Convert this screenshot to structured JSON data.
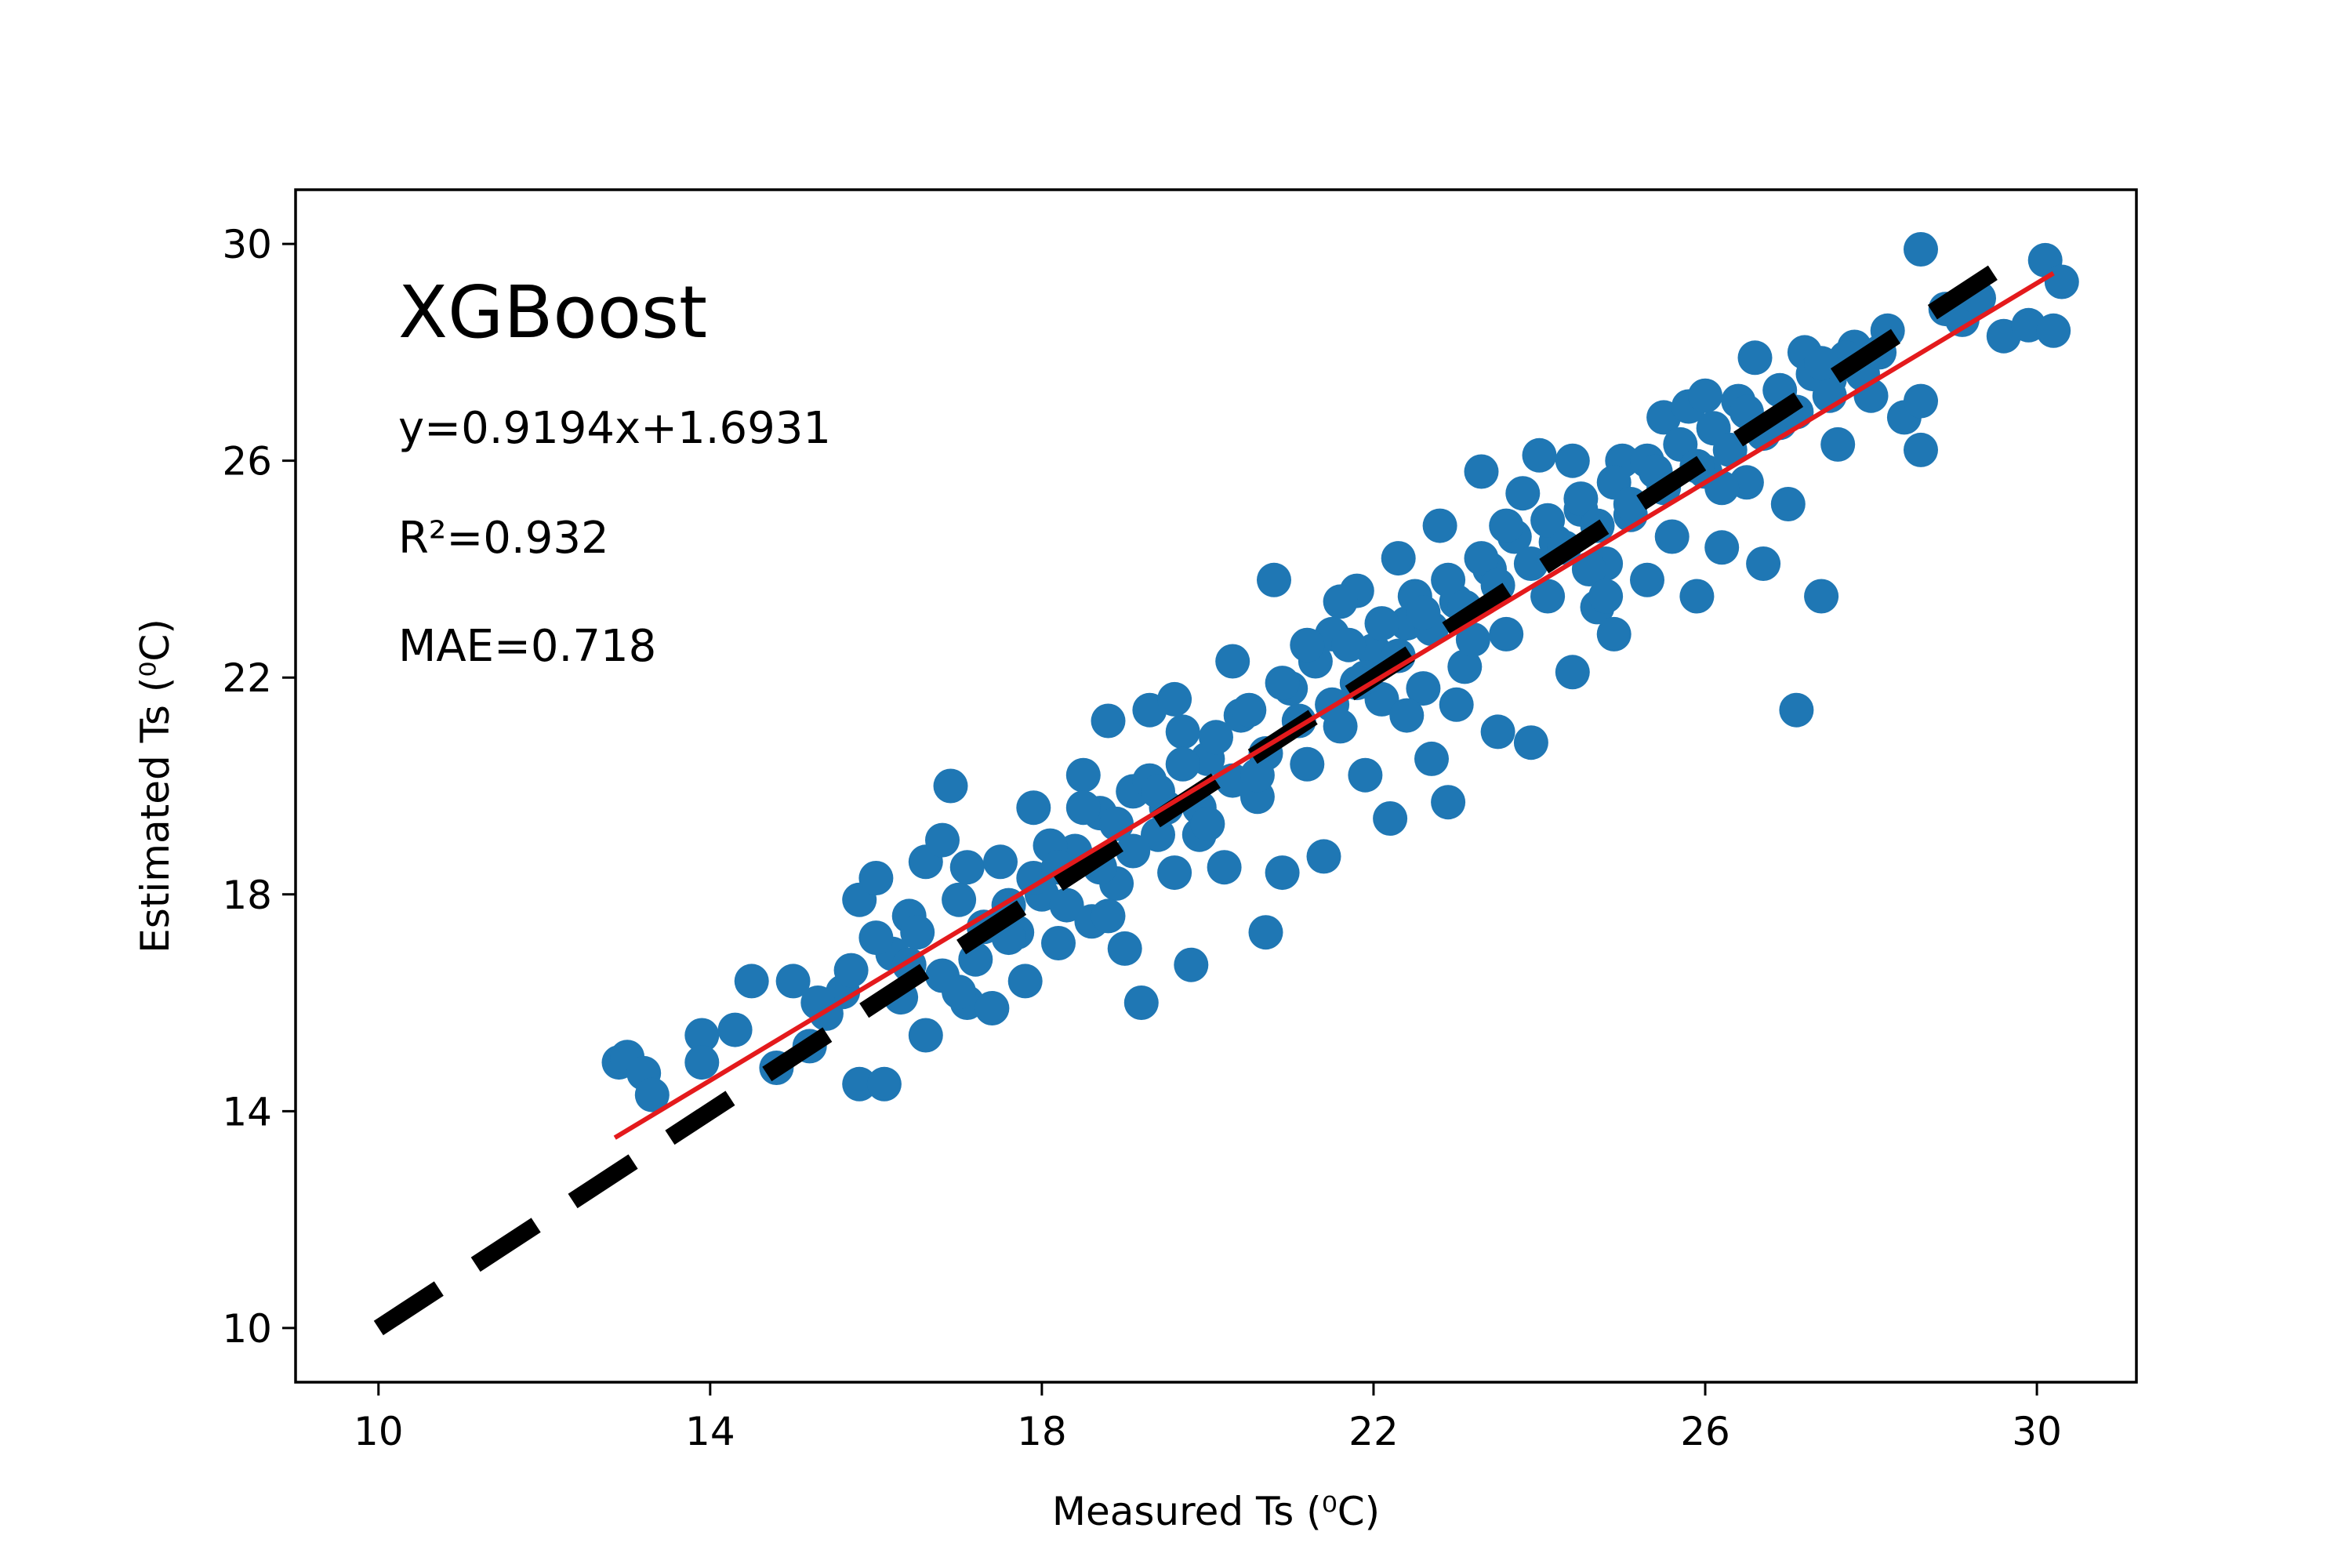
{
  "chart_data": {
    "type": "scatter",
    "xlabel": "Measured Ts (⁰C)",
    "ylabel": "Estimated Ts (⁰C)",
    "xlim": [
      9.0,
      31.2
    ],
    "ylim": [
      9.0,
      31.0
    ],
    "xticks": [
      10,
      14,
      18,
      22,
      26,
      30
    ],
    "yticks": [
      10,
      14,
      18,
      22,
      26,
      30
    ],
    "xtick_labels": [
      "10",
      "14",
      "18",
      "22",
      "26",
      "30"
    ],
    "ytick_labels": [
      "10",
      "14",
      "18",
      "22",
      "26",
      "30"
    ],
    "grid": false,
    "annotations": {
      "model": "XGBoost",
      "equation": "y=0.9194x+1.6931",
      "r2": "R²=0.932",
      "mae": "MAE=0.718"
    },
    "series": [
      {
        "type": "scatter",
        "color": "#1f77b4",
        "points": [
          [
            12.9,
            14.9
          ],
          [
            13.0,
            15.0
          ],
          [
            13.2,
            14.7
          ],
          [
            13.3,
            14.3
          ],
          [
            13.9,
            15.4
          ],
          [
            13.9,
            14.9
          ],
          [
            14.3,
            15.5
          ],
          [
            14.5,
            16.4
          ],
          [
            14.8,
            14.8
          ],
          [
            15.0,
            16.4
          ],
          [
            15.2,
            15.2
          ],
          [
            15.4,
            15.8
          ],
          [
            15.6,
            16.2
          ],
          [
            15.8,
            17.9
          ],
          [
            15.8,
            14.5
          ],
          [
            16.1,
            14.5
          ],
          [
            16.0,
            18.3
          ],
          [
            16.2,
            16.9
          ],
          [
            16.4,
            17.6
          ],
          [
            16.6,
            15.4
          ],
          [
            16.6,
            18.6
          ],
          [
            16.8,
            19.0
          ],
          [
            16.9,
            20.0
          ],
          [
            17.1,
            18.5
          ],
          [
            17.1,
            16.0
          ],
          [
            17.3,
            17.4
          ],
          [
            17.4,
            15.9
          ],
          [
            17.6,
            17.8
          ],
          [
            17.8,
            16.4
          ],
          [
            17.9,
            19.6
          ],
          [
            18.0,
            18.0
          ],
          [
            18.2,
            17.1
          ],
          [
            18.4,
            18.8
          ],
          [
            18.5,
            20.2
          ],
          [
            18.6,
            17.5
          ],
          [
            18.7,
            19.5
          ],
          [
            18.8,
            21.2
          ],
          [
            18.9,
            18.2
          ],
          [
            19.0,
            17.0
          ],
          [
            19.1,
            19.9
          ],
          [
            19.2,
            16.0
          ],
          [
            19.3,
            21.4
          ],
          [
            19.4,
            19.1
          ],
          [
            19.6,
            18.4
          ],
          [
            19.7,
            21.0
          ],
          [
            19.8,
            16.7
          ],
          [
            19.9,
            19.6
          ],
          [
            20.0,
            20.5
          ],
          [
            20.2,
            18.5
          ],
          [
            20.3,
            22.3
          ],
          [
            20.4,
            21.3
          ],
          [
            20.6,
            19.8
          ],
          [
            20.7,
            17.3
          ],
          [
            20.8,
            23.8
          ],
          [
            20.9,
            18.4
          ],
          [
            21.0,
            21.8
          ],
          [
            21.2,
            20.4
          ],
          [
            21.4,
            18.7
          ],
          [
            21.5,
            22.8
          ],
          [
            21.6,
            21.1
          ],
          [
            21.8,
            23.6
          ],
          [
            21.9,
            20.2
          ],
          [
            22.0,
            22.5
          ],
          [
            22.1,
            21.6
          ],
          [
            22.2,
            19.4
          ],
          [
            22.3,
            24.2
          ],
          [
            22.4,
            23.0
          ],
          [
            22.6,
            21.8
          ],
          [
            22.7,
            20.5
          ],
          [
            22.8,
            24.8
          ],
          [
            22.9,
            19.7
          ],
          [
            23.0,
            23.4
          ],
          [
            23.1,
            22.2
          ],
          [
            23.3,
            25.8
          ],
          [
            23.4,
            24.0
          ],
          [
            23.5,
            21.0
          ],
          [
            23.6,
            22.8
          ],
          [
            23.8,
            25.4
          ],
          [
            23.9,
            20.8
          ],
          [
            24.0,
            26.1
          ],
          [
            24.1,
            23.5
          ],
          [
            24.2,
            24.5
          ],
          [
            24.4,
            22.1
          ],
          [
            24.5,
            25.1
          ],
          [
            24.7,
            23.3
          ],
          [
            24.8,
            24.1
          ],
          [
            24.9,
            22.8
          ],
          [
            25.0,
            26.0
          ],
          [
            25.1,
            25.0
          ],
          [
            25.3,
            23.8
          ],
          [
            25.5,
            26.8
          ],
          [
            25.6,
            24.6
          ],
          [
            25.8,
            27.0
          ],
          [
            25.9,
            23.5
          ],
          [
            26.0,
            25.8
          ],
          [
            26.2,
            24.4
          ],
          [
            26.4,
            27.1
          ],
          [
            26.5,
            25.6
          ],
          [
            26.6,
            27.9
          ],
          [
            26.7,
            24.1
          ],
          [
            26.9,
            26.7
          ],
          [
            27.0,
            25.2
          ],
          [
            27.1,
            21.4
          ],
          [
            27.2,
            28.0
          ],
          [
            27.4,
            23.5
          ],
          [
            27.5,
            27.5
          ],
          [
            27.6,
            26.3
          ],
          [
            27.8,
            28.1
          ],
          [
            28.0,
            27.2
          ],
          [
            28.2,
            28.4
          ],
          [
            28.4,
            26.8
          ],
          [
            28.6,
            27.1
          ],
          [
            28.6,
            26.2
          ],
          [
            28.6,
            29.9
          ],
          [
            28.9,
            28.8
          ],
          [
            29.1,
            28.6
          ],
          [
            29.3,
            29.0
          ],
          [
            29.6,
            28.3
          ],
          [
            29.9,
            28.5
          ],
          [
            30.1,
            29.7
          ],
          [
            30.2,
            28.4
          ],
          [
            30.3,
            29.3
          ],
          [
            15.3,
            16.0
          ],
          [
            15.7,
            16.6
          ],
          [
            16.0,
            17.2
          ],
          [
            16.3,
            16.1
          ],
          [
            16.5,
            17.3
          ],
          [
            16.8,
            16.5
          ],
          [
            17.0,
            17.9
          ],
          [
            17.2,
            16.8
          ],
          [
            17.5,
            18.6
          ],
          [
            17.7,
            17.3
          ],
          [
            17.9,
            18.3
          ],
          [
            18.1,
            18.9
          ],
          [
            18.3,
            17.8
          ],
          [
            18.5,
            19.6
          ],
          [
            18.7,
            18.5
          ],
          [
            18.9,
            19.3
          ],
          [
            19.1,
            18.8
          ],
          [
            19.3,
            20.1
          ],
          [
            19.5,
            19.6
          ],
          [
            19.7,
            20.4
          ],
          [
            19.9,
            19.1
          ],
          [
            20.1,
            20.9
          ],
          [
            20.3,
            20.1
          ],
          [
            20.5,
            21.4
          ],
          [
            20.7,
            20.6
          ],
          [
            20.9,
            21.9
          ],
          [
            21.1,
            21.2
          ],
          [
            21.3,
            22.3
          ],
          [
            21.5,
            21.5
          ],
          [
            21.7,
            22.6
          ],
          [
            21.9,
            22.0
          ],
          [
            22.1,
            23.0
          ],
          [
            22.3,
            22.4
          ],
          [
            22.5,
            23.5
          ],
          [
            22.7,
            22.9
          ],
          [
            22.9,
            23.8
          ],
          [
            23.1,
            23.3
          ],
          [
            23.3,
            24.2
          ],
          [
            23.5,
            23.7
          ],
          [
            23.7,
            24.6
          ],
          [
            23.9,
            24.1
          ],
          [
            24.1,
            24.9
          ],
          [
            24.3,
            24.4
          ],
          [
            24.5,
            25.3
          ],
          [
            24.7,
            24.8
          ],
          [
            24.9,
            25.6
          ],
          [
            25.1,
            25.2
          ],
          [
            25.3,
            26.0
          ],
          [
            25.5,
            25.5
          ],
          [
            25.7,
            26.3
          ],
          [
            25.9,
            25.9
          ],
          [
            26.1,
            26.6
          ],
          [
            26.3,
            26.2
          ],
          [
            26.5,
            26.9
          ],
          [
            26.7,
            26.5
          ],
          [
            26.9,
            27.3
          ],
          [
            27.1,
            26.9
          ],
          [
            27.3,
            27.6
          ],
          [
            27.5,
            27.2
          ],
          [
            27.7,
            27.9
          ],
          [
            27.9,
            27.6
          ],
          [
            28.1,
            28.0
          ],
          [
            16.4,
            16.7
          ],
          [
            17.6,
            17.2
          ],
          [
            18.2,
            18.5
          ],
          [
            19.4,
            19.9
          ],
          [
            20.6,
            20.2
          ],
          [
            21.8,
            21.9
          ],
          [
            22.6,
            23.2
          ],
          [
            23.2,
            22.7
          ],
          [
            24.6,
            24.0
          ],
          [
            25.4,
            25.8
          ],
          [
            26.2,
            25.5
          ],
          [
            27.4,
            27.8
          ],
          [
            18.8,
            17.6
          ],
          [
            20.0,
            19.3
          ],
          [
            21.2,
            22.6
          ],
          [
            22.4,
            21.3
          ],
          [
            23.6,
            24.8
          ],
          [
            24.8,
            23.5
          ],
          [
            26.0,
            27.2
          ],
          [
            17.0,
            16.2
          ],
          [
            19.6,
            21.6
          ],
          [
            21.6,
            23.4
          ],
          [
            23.0,
            21.5
          ],
          [
            24.4,
            26.0
          ]
        ]
      },
      {
        "type": "line",
        "name": "",
        "color": "#000000",
        "dash": true,
        "x": [
          10.0,
          29.9
        ],
        "y": [
          10.0,
          29.9
        ]
      },
      {
        "type": "line",
        "name": "",
        "color": "#e41a1c",
        "x": [
          12.85,
          30.2
        ],
        "y": [
          13.51,
          29.46
        ]
      }
    ]
  }
}
